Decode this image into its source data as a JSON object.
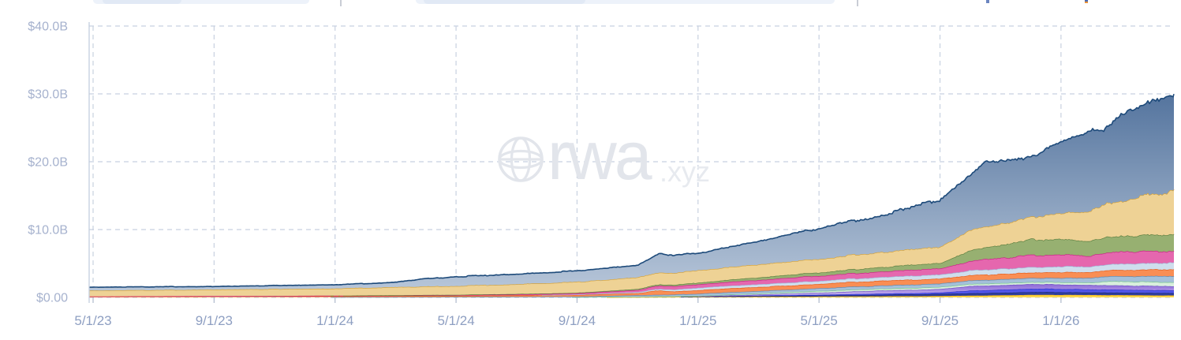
{
  "watermark": {
    "brand": "rwa",
    "suffix": ".xyz",
    "color": "#e2e5eb",
    "suffix_color": "#e7eaef"
  },
  "colors": {
    "grid": "#c8d1e0",
    "plot_border": "#c4cede",
    "tick_mark": "#aeb9cc",
    "y_axis_text": "#a6b2ce",
    "x_axis_text": "#8e9fc2",
    "background": "#ffffff"
  },
  "clipped_header": {
    "bg": "#edf2fa",
    "inner": "#e1e9f5",
    "divider": "#c9cdd5"
  },
  "chart_data": {
    "type": "area",
    "stacked": true,
    "title": "",
    "xlabel": "",
    "ylabel": "",
    "legend": "none visible",
    "grid": "dashed",
    "unit": "USD billions",
    "ylim": [
      0,
      40
    ],
    "y_values": [
      0,
      10,
      20,
      30,
      40
    ],
    "y_ticks": [
      "$0.00",
      "$10.0B",
      "$20.0B",
      "$30.0B",
      "$40.0B"
    ],
    "x_ticks": [
      "5/1/23",
      "9/1/23",
      "1/1/24",
      "5/1/24",
      "9/1/24",
      "1/1/25",
      "5/1/25",
      "9/1/25",
      "1/1/26"
    ],
    "x_tick_months": [
      0,
      4,
      8,
      12,
      16,
      20,
      24,
      28,
      32
    ],
    "x_range_months": [
      0,
      35.8
    ],
    "x_note": "months measured from 5/1/23; chart extends to ~mid-April 2026; total stack grows from ~$1.5B to ~$30B",
    "series_note": "stacked bottom-to-top; no legend shown, series named by color; values in $B at month offsets",
    "series": [
      {
        "name": "yellow",
        "fill": "#ffd84a",
        "line": "#eeb211",
        "amp": 0.1,
        "points": [
          [
            0,
            0
          ],
          [
            16,
            0
          ],
          [
            18,
            0.04
          ],
          [
            20,
            0.08
          ],
          [
            24,
            0.12
          ],
          [
            28,
            0.2
          ],
          [
            30,
            0.3
          ],
          [
            31,
            0.38
          ],
          [
            33,
            0.35
          ],
          [
            35.8,
            0.28
          ]
        ]
      },
      {
        "name": "navy",
        "fill": "#2f3f9f",
        "line": "#1c2a6b",
        "amp": 0.08,
        "points": [
          [
            0,
            0
          ],
          [
            19,
            0
          ],
          [
            20,
            0.05
          ],
          [
            24,
            0.15
          ],
          [
            28,
            0.3
          ],
          [
            30,
            0.38
          ],
          [
            31,
            0.4
          ],
          [
            33,
            0.38
          ],
          [
            35.8,
            0.35
          ]
        ]
      },
      {
        "name": "royal-blue",
        "fill": "#5156ea",
        "line": "#2f33c8",
        "amp": 0.08,
        "points": [
          [
            0,
            0
          ],
          [
            20,
            0
          ],
          [
            21,
            0.05
          ],
          [
            24,
            0.12
          ],
          [
            28,
            0.2
          ],
          [
            29,
            0.4
          ],
          [
            31,
            0.5
          ],
          [
            33,
            0.45
          ],
          [
            35.8,
            0.4
          ]
        ]
      },
      {
        "name": "purple",
        "fill": "#a88ee4",
        "line": "#6f4fc4",
        "amp": 0.09,
        "gradient": [
          "#8b65d6",
          "#cdbef4"
        ],
        "points": [
          [
            0,
            0
          ],
          [
            20,
            0.02
          ],
          [
            21,
            0.08
          ],
          [
            24,
            0.3
          ],
          [
            26,
            0.45
          ],
          [
            28,
            0.5
          ],
          [
            29,
            0.65
          ],
          [
            31,
            0.7
          ],
          [
            33,
            0.65
          ],
          [
            35.8,
            0.6
          ]
        ]
      },
      {
        "name": "mint-green",
        "fill": "#d8efdc",
        "line": "#79c48f",
        "amp": 0.1,
        "points": [
          [
            0,
            0
          ],
          [
            16,
            0.02
          ],
          [
            18,
            0.06
          ],
          [
            20,
            0.08
          ],
          [
            24,
            0.25
          ],
          [
            28,
            0.3
          ],
          [
            31,
            0.3
          ],
          [
            33,
            0.35
          ],
          [
            33.6,
            0.6
          ],
          [
            35.8,
            0.6
          ]
        ]
      },
      {
        "name": "steel-blue",
        "fill": "#a4c0d9",
        "line": "#5d88b2",
        "amp": 0.1,
        "points": [
          [
            0,
            0
          ],
          [
            8,
            0.02
          ],
          [
            12,
            0.04
          ],
          [
            16,
            0.08
          ],
          [
            18,
            0.2
          ],
          [
            20,
            0.3
          ],
          [
            24,
            0.4
          ],
          [
            28,
            0.5
          ],
          [
            31,
            0.6
          ],
          [
            33,
            0.7
          ],
          [
            35.8,
            0.9
          ]
        ]
      },
      {
        "name": "orange",
        "fill": "#f98e54",
        "line": "#e55b17",
        "amp": 0.1,
        "points": [
          [
            0,
            0.13
          ],
          [
            8,
            0.15
          ],
          [
            12,
            0.18
          ],
          [
            16,
            0.25
          ],
          [
            18,
            0.3
          ],
          [
            18.7,
            0.65
          ],
          [
            19.2,
            0.45
          ],
          [
            20,
            0.55
          ],
          [
            24,
            0.65
          ],
          [
            28,
            0.75
          ],
          [
            31,
            0.8
          ],
          [
            33,
            0.85
          ],
          [
            35.8,
            1.0
          ]
        ]
      },
      {
        "name": "pale-blue",
        "fill": "#cfdeed",
        "line": "#9fbcdb",
        "amp": 0.1,
        "points": [
          [
            0,
            0
          ],
          [
            14,
            0
          ],
          [
            16,
            0.05
          ],
          [
            18,
            0.15
          ],
          [
            20,
            0.35
          ],
          [
            24,
            0.45
          ],
          [
            28,
            0.6
          ],
          [
            29,
            0.7
          ],
          [
            31,
            0.8
          ],
          [
            33,
            0.85
          ],
          [
            35.8,
            1.0
          ]
        ]
      },
      {
        "name": "magenta",
        "fill": "#e567ae",
        "line": "#c92185",
        "amp": 0.09,
        "points": [
          [
            0,
            0.02
          ],
          [
            8,
            0.05
          ],
          [
            12,
            0.1
          ],
          [
            16,
            0.18
          ],
          [
            18,
            0.3
          ],
          [
            18.7,
            0.5
          ],
          [
            20,
            0.5
          ],
          [
            24,
            0.75
          ],
          [
            28,
            0.9
          ],
          [
            29,
            1.4
          ],
          [
            31,
            1.8
          ],
          [
            33,
            1.6
          ],
          [
            34,
            1.8
          ],
          [
            35.8,
            1.7
          ]
        ]
      },
      {
        "name": "green",
        "fill": "#97b071",
        "line": "#5a7d3e",
        "amp": 0.09,
        "points": [
          [
            0,
            0
          ],
          [
            8,
            0.02
          ],
          [
            12,
            0.04
          ],
          [
            16,
            0.08
          ],
          [
            18,
            0.15
          ],
          [
            20,
            0.25
          ],
          [
            24,
            0.5
          ],
          [
            28,
            0.8
          ],
          [
            29,
            1.6
          ],
          [
            31,
            2.3
          ],
          [
            33,
            2.2
          ],
          [
            34,
            2.3
          ],
          [
            35.8,
            2.4
          ]
        ]
      },
      {
        "name": "gold",
        "fill": "#eed295",
        "line": "#d8a233",
        "amp": 0.06,
        "points": [
          [
            0,
            0.85
          ],
          [
            4,
            0.95
          ],
          [
            8,
            1.05
          ],
          [
            12,
            1.3
          ],
          [
            16,
            1.6
          ],
          [
            18,
            1.7
          ],
          [
            20,
            1.8
          ],
          [
            24,
            2.0
          ],
          [
            28,
            2.4
          ],
          [
            29,
            3.0
          ],
          [
            31,
            3.3
          ],
          [
            32,
            3.8
          ],
          [
            33,
            4.5
          ],
          [
            34,
            5.2
          ],
          [
            35,
            6.0
          ],
          [
            35.8,
            6.4
          ]
        ]
      },
      {
        "name": "big-blue",
        "fill": "#8ea9c6",
        "line": "#1d4a7a",
        "amp": 0.05,
        "gradient": [
          "#54749e",
          "#b7c6d9"
        ],
        "points": [
          [
            0,
            0.5
          ],
          [
            4,
            0.45
          ],
          [
            8,
            0.57
          ],
          [
            10,
            0.7
          ],
          [
            10.8,
            1.1
          ],
          [
            12,
            1.36
          ],
          [
            14,
            1.5
          ],
          [
            16,
            1.64
          ],
          [
            18,
            1.8
          ],
          [
            18.7,
            2.8
          ],
          [
            19.3,
            2.6
          ],
          [
            20,
            2.5
          ],
          [
            21,
            3.0
          ],
          [
            22,
            3.4
          ],
          [
            23,
            4.0
          ],
          [
            24,
            4.5
          ],
          [
            25,
            5.0
          ],
          [
            26,
            5.4
          ],
          [
            27,
            6.2
          ],
          [
            28,
            7.0
          ],
          [
            28.6,
            7.6
          ],
          [
            29,
            8.0
          ],
          [
            29.5,
            9.5
          ],
          [
            30,
            9.3
          ],
          [
            30.5,
            9.0
          ],
          [
            31,
            8.7
          ],
          [
            32,
            10.6
          ],
          [
            33,
            11.9
          ],
          [
            33.4,
            11.0
          ],
          [
            34,
            12.8
          ],
          [
            35,
            13.6
          ],
          [
            35.5,
            14.4
          ],
          [
            35.8,
            14.2
          ]
        ]
      }
    ]
  }
}
